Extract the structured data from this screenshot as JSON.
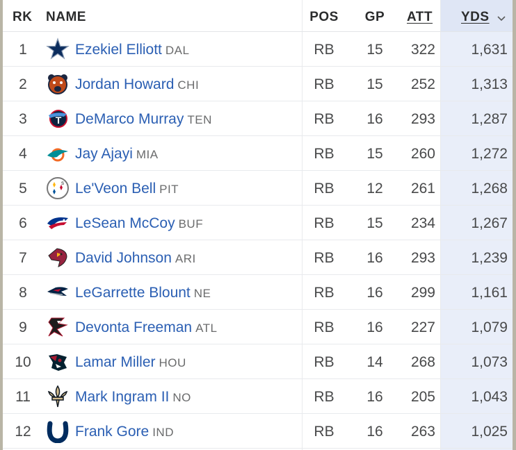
{
  "header": {
    "rk": "RK",
    "name": "NAME",
    "pos": "POS",
    "gp": "GP",
    "att": "ATT",
    "yds": "YDS"
  },
  "sort_indicator_icon": "chevron-down-icon",
  "rows": [
    {
      "rk": "1",
      "name": "Ezekiel Elliott",
      "team": "DAL",
      "pos": "RB",
      "gp": "15",
      "att": "322",
      "yds": "1,631",
      "logo_icon": "cowboys-star-icon"
    },
    {
      "rk": "2",
      "name": "Jordan Howard",
      "team": "CHI",
      "pos": "RB",
      "gp": "15",
      "att": "252",
      "yds": "1,313",
      "logo_icon": "bears-head-icon"
    },
    {
      "rk": "3",
      "name": "DeMarco Murray",
      "team": "TEN",
      "pos": "RB",
      "gp": "16",
      "att": "293",
      "yds": "1,287",
      "logo_icon": "titans-logo-icon"
    },
    {
      "rk": "4",
      "name": "Jay Ajayi",
      "team": "MIA",
      "pos": "RB",
      "gp": "15",
      "att": "260",
      "yds": "1,272",
      "logo_icon": "dolphins-logo-icon"
    },
    {
      "rk": "5",
      "name": "Le'Veon Bell",
      "team": "PIT",
      "pos": "RB",
      "gp": "12",
      "att": "261",
      "yds": "1,268",
      "logo_icon": "steelers-logo-icon"
    },
    {
      "rk": "6",
      "name": "LeSean McCoy",
      "team": "BUF",
      "pos": "RB",
      "gp": "15",
      "att": "234",
      "yds": "1,267",
      "logo_icon": "bills-logo-icon"
    },
    {
      "rk": "7",
      "name": "David Johnson",
      "team": "ARI",
      "pos": "RB",
      "gp": "16",
      "att": "293",
      "yds": "1,239",
      "logo_icon": "cardinals-logo-icon"
    },
    {
      "rk": "8",
      "name": "LeGarrette Blount",
      "team": "NE",
      "pos": "RB",
      "gp": "16",
      "att": "299",
      "yds": "1,161",
      "logo_icon": "patriots-logo-icon"
    },
    {
      "rk": "9",
      "name": "Devonta Freeman",
      "team": "ATL",
      "pos": "RB",
      "gp": "16",
      "att": "227",
      "yds": "1,079",
      "logo_icon": "falcons-logo-icon"
    },
    {
      "rk": "10",
      "name": "Lamar Miller",
      "team": "HOU",
      "pos": "RB",
      "gp": "14",
      "att": "268",
      "yds": "1,073",
      "logo_icon": "texans-logo-icon"
    },
    {
      "rk": "11",
      "name": "Mark Ingram II",
      "team": "NO",
      "pos": "RB",
      "gp": "16",
      "att": "205",
      "yds": "1,043",
      "logo_icon": "saints-fleur-de-lis-icon"
    },
    {
      "rk": "12",
      "name": "Frank Gore",
      "team": "IND",
      "pos": "RB",
      "gp": "16",
      "att": "263",
      "yds": "1,025",
      "logo_icon": "colts-horseshoe-icon"
    }
  ],
  "colors": {
    "link": "#2b5fb3",
    "sorted_column_bg": "#e9eef9",
    "sorted_header_bg": "#dfe6f5"
  }
}
